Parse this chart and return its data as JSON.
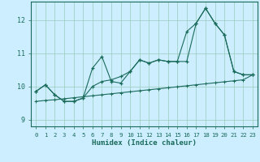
{
  "xlabel": "Humidex (Indice chaleur)",
  "bg_color": "#cceeff",
  "grid_color": "#99ccbb",
  "line_color": "#1a6b5a",
  "xlim": [
    -0.5,
    23.5
  ],
  "ylim": [
    8.8,
    12.55
  ],
  "xticks": [
    0,
    1,
    2,
    3,
    4,
    5,
    6,
    7,
    8,
    9,
    10,
    11,
    12,
    13,
    14,
    15,
    16,
    17,
    18,
    19,
    20,
    21,
    22,
    23
  ],
  "yticks": [
    9,
    10,
    11,
    12
  ],
  "line1_x": [
    0,
    1,
    2,
    3,
    4,
    5,
    6,
    7,
    8,
    9,
    10,
    11,
    12,
    13,
    14,
    15,
    16,
    17,
    18,
    19,
    20,
    21,
    22,
    23
  ],
  "line1_y": [
    9.85,
    10.05,
    9.75,
    9.55,
    9.55,
    9.65,
    10.55,
    10.9,
    10.15,
    10.1,
    10.45,
    10.8,
    10.7,
    10.8,
    10.75,
    10.75,
    11.65,
    11.9,
    12.35,
    11.9,
    11.55,
    10.45,
    10.35,
    10.35
  ],
  "line2_x": [
    0,
    1,
    2,
    3,
    4,
    5,
    6,
    7,
    8,
    9,
    10,
    11,
    12,
    13,
    14,
    15,
    16,
    17,
    18,
    19,
    20,
    21,
    22,
    23
  ],
  "line2_y": [
    9.85,
    10.05,
    9.75,
    9.55,
    9.55,
    9.65,
    10.0,
    10.15,
    10.2,
    10.3,
    10.45,
    10.8,
    10.7,
    10.8,
    10.75,
    10.75,
    10.75,
    11.9,
    12.35,
    11.9,
    11.55,
    10.45,
    10.35,
    10.35
  ],
  "line3_x": [
    0,
    1,
    2,
    3,
    4,
    5,
    6,
    7,
    8,
    9,
    10,
    11,
    12,
    13,
    14,
    15,
    16,
    17,
    18,
    19,
    20,
    21,
    22,
    23
  ],
  "line3_y": [
    9.55,
    9.58,
    9.6,
    9.63,
    9.66,
    9.69,
    9.72,
    9.75,
    9.78,
    9.81,
    9.84,
    9.87,
    9.9,
    9.93,
    9.96,
    9.99,
    10.02,
    10.05,
    10.08,
    10.11,
    10.14,
    10.17,
    10.2,
    10.35
  ],
  "marker_size": 3.5,
  "line_width": 0.8
}
